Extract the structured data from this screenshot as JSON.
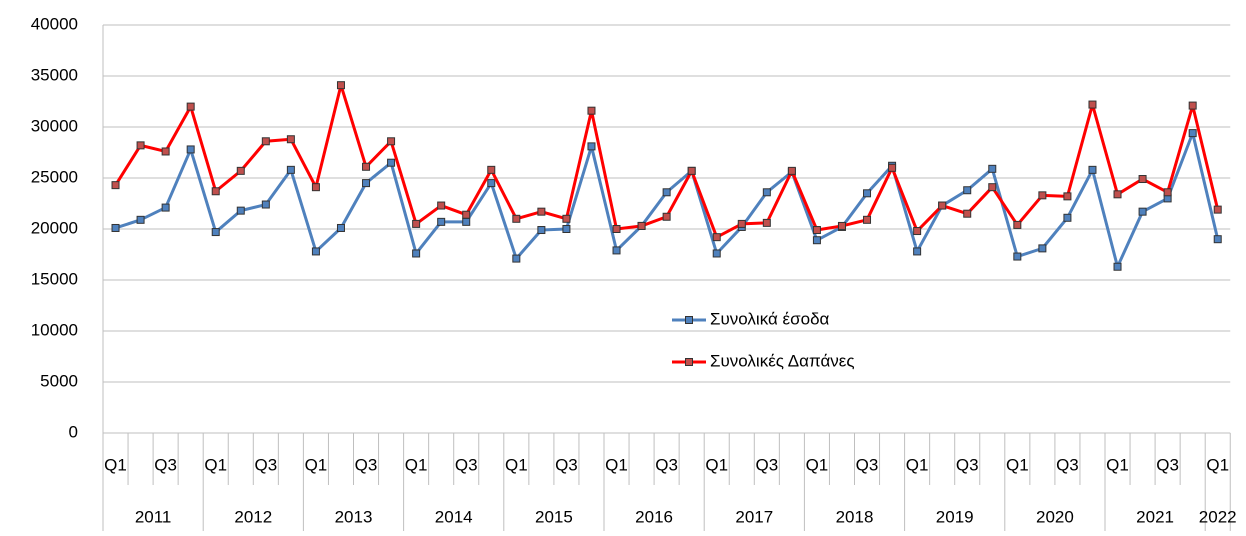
{
  "chart_data": {
    "type": "line",
    "categories": [
      "Q1",
      null,
      "Q3",
      null,
      "Q1",
      null,
      "Q3",
      null,
      "Q1",
      null,
      "Q3",
      null,
      "Q1",
      null,
      "Q3",
      null,
      "Q1",
      null,
      "Q3",
      null,
      "Q1",
      null,
      "Q3",
      null,
      "Q1",
      null,
      "Q3",
      null,
      "Q1",
      null,
      "Q3",
      null,
      "Q1",
      null,
      "Q3",
      null,
      "Q1",
      null,
      "Q3",
      null,
      "Q1",
      null,
      "Q3",
      null,
      "Q1"
    ],
    "groups": [
      "2011",
      "2012",
      "2013",
      "2014",
      "2015",
      "2016",
      "2017",
      "2018",
      "2019",
      "2020",
      "2021",
      "2022"
    ],
    "series": [
      {
        "name": "Συνολικά έσοδα",
        "color": "#4f81bd",
        "marker_color": "#4f81bd",
        "values": [
          20100,
          20900,
          22100,
          27800,
          19700,
          21800,
          22400,
          25800,
          17800,
          20100,
          24500,
          26500,
          17600,
          20700,
          20700,
          24500,
          17100,
          19900,
          20000,
          28100,
          17900,
          20300,
          23600,
          25700,
          17600,
          20200,
          23600,
          25600,
          18900,
          20200,
          23500,
          26200,
          17800,
          22300,
          23800,
          25900,
          17300,
          18100,
          21100,
          25800,
          16300,
          21700,
          23000,
          29400,
          19000
        ]
      },
      {
        "name": "Συνολικές Δαπάνες",
        "color": "#ff0000",
        "marker_color": "#c0504d",
        "values": [
          24300,
          28200,
          27600,
          32000,
          23700,
          25700,
          28600,
          28800,
          24100,
          34100,
          26100,
          28600,
          20500,
          22300,
          21400,
          25800,
          21000,
          21700,
          21000,
          31600,
          20000,
          20300,
          21200,
          25700,
          19200,
          20500,
          20600,
          25700,
          19900,
          20300,
          20900,
          26000,
          19800,
          22300,
          21500,
          24100,
          20400,
          23300,
          23200,
          32200,
          23400,
          24900,
          23600,
          32100,
          21900
        ]
      }
    ],
    "ylim": [
      0,
      40000
    ],
    "yticks": [
      0,
      5000,
      10000,
      15000,
      20000,
      25000,
      30000,
      35000,
      40000
    ],
    "grid": true
  }
}
